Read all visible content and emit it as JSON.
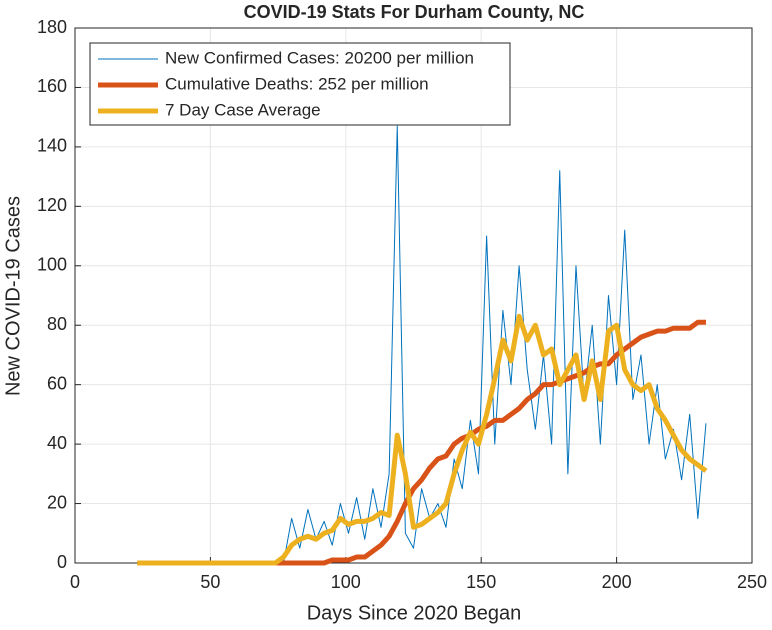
{
  "chart_data": {
    "type": "line",
    "title": "COVID-19 Stats For Durham County, NC",
    "xlabel": "Days Since 2020 Began",
    "ylabel": "New COVID-19 Cases",
    "x": [
      23,
      26,
      29,
      32,
      35,
      38,
      41,
      44,
      47,
      50,
      53,
      56,
      59,
      62,
      65,
      68,
      71,
      74,
      77,
      80,
      83,
      86,
      89,
      92,
      95,
      98,
      101,
      104,
      107,
      110,
      113,
      116,
      119,
      122,
      125,
      128,
      131,
      134,
      137,
      140,
      143,
      146,
      149,
      152,
      155,
      158,
      161,
      164,
      167,
      170,
      173,
      176,
      179,
      182,
      185,
      188,
      191,
      194,
      197,
      200,
      203,
      206,
      209,
      212,
      215,
      218,
      221,
      224,
      227,
      230,
      233
    ],
    "series": [
      {
        "name": "New Confirmed Cases: 20200 per million",
        "color": "#0072bd",
        "width": 1,
        "values": [
          null,
          null,
          null,
          null,
          null,
          null,
          null,
          null,
          null,
          null,
          null,
          null,
          null,
          null,
          null,
          null,
          null,
          null,
          0,
          15,
          5,
          18,
          8,
          14,
          6,
          20,
          10,
          22,
          8,
          25,
          12,
          30,
          147,
          10,
          5,
          25,
          15,
          20,
          12,
          35,
          25,
          48,
          30,
          110,
          40,
          85,
          60,
          100,
          65,
          45,
          70,
          40,
          132,
          30,
          100,
          55,
          80,
          40,
          90,
          60,
          112,
          55,
          70,
          40,
          60,
          35,
          45,
          28,
          50,
          15,
          47
        ]
      },
      {
        "name": "Cumulative Deaths: 252 per million",
        "color": "#d95319",
        "width": 5,
        "values": [
          0,
          0,
          0,
          0,
          0,
          0,
          0,
          0,
          0,
          0,
          0,
          0,
          0,
          0,
          0,
          0,
          0,
          0,
          0,
          0,
          0,
          0,
          0,
          0,
          1,
          1,
          1,
          2,
          2,
          4,
          6,
          9,
          14,
          20,
          25,
          28,
          32,
          35,
          36,
          40,
          42,
          43,
          45,
          46,
          48,
          48,
          50,
          52,
          55,
          57,
          60,
          60,
          61,
          62,
          63,
          64,
          66,
          67,
          67,
          70,
          72,
          74,
          76,
          77,
          78,
          78,
          79,
          79,
          79,
          81,
          81
        ]
      },
      {
        "name": "7 Day Case Average",
        "color": "#edb120",
        "width": 5,
        "values": [
          0,
          0,
          0,
          0,
          0,
          0,
          0,
          0,
          0,
          0,
          0,
          0,
          0,
          0,
          0,
          0,
          0,
          0,
          2,
          6,
          8,
          9,
          8,
          10,
          11,
          15,
          13,
          14,
          14,
          15,
          17,
          16,
          43,
          30,
          12,
          13,
          15,
          17,
          20,
          30,
          38,
          44,
          40,
          50,
          62,
          75,
          68,
          83,
          75,
          80,
          70,
          72,
          60,
          65,
          70,
          55,
          68,
          55,
          78,
          80,
          65,
          60,
          58,
          60,
          52,
          48,
          43,
          38,
          35,
          33,
          31
        ]
      }
    ],
    "xlim": [
      0,
      250
    ],
    "xticks": [
      0,
      50,
      100,
      150,
      200,
      250
    ],
    "ylim": [
      0,
      180
    ],
    "yticks": [
      0,
      20,
      40,
      60,
      80,
      100,
      120,
      140,
      160,
      180
    ],
    "grid": true,
    "legend": "upper-left"
  }
}
